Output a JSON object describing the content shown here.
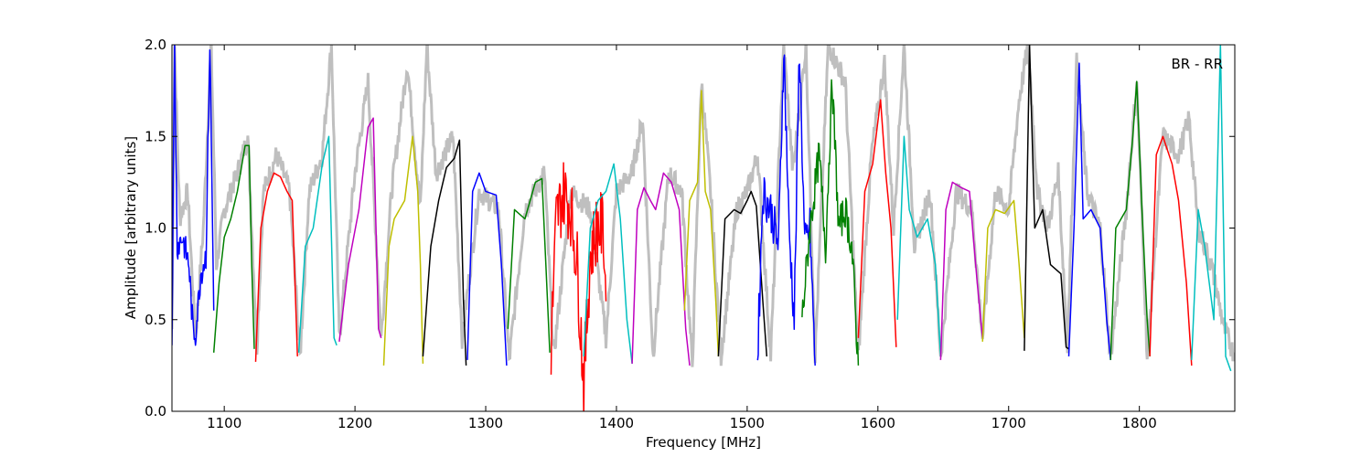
{
  "chart_data": {
    "type": "line",
    "title": "",
    "xlabel": "Frequency [MHz]",
    "ylabel": "Amplitude [arbitrary units]",
    "xlim": [
      1060,
      1873
    ],
    "ylim": [
      0.0,
      2.0
    ],
    "x_ticks": [
      "1100",
      "1200",
      "1300",
      "1400",
      "1500",
      "1600",
      "1700",
      "1800"
    ],
    "y_ticks": [
      "0.0",
      "0.5",
      "1.0",
      "1.5",
      "2.0"
    ],
    "annotation": "BR - RR",
    "grid": false,
    "background": {
      "color": "#bfbfbf",
      "points": [
        [
          1060,
          0.45
        ],
        [
          1062,
          2.0
        ],
        [
          1066,
          1.05
        ],
        [
          1072,
          1.2
        ],
        [
          1078,
          0.4
        ],
        [
          1084,
          1.0
        ],
        [
          1090,
          2.0
        ],
        [
          1094,
          0.8
        ],
        [
          1100,
          1.1
        ],
        [
          1110,
          1.3
        ],
        [
          1118,
          1.5
        ],
        [
          1125,
          0.35
        ],
        [
          1130,
          1.2
        ],
        [
          1140,
          1.4
        ],
        [
          1150,
          1.2
        ],
        [
          1158,
          0.3
        ],
        [
          1165,
          1.2
        ],
        [
          1175,
          1.4
        ],
        [
          1182,
          2.0
        ],
        [
          1188,
          0.4
        ],
        [
          1200,
          1.3
        ],
        [
          1210,
          1.8
        ],
        [
          1220,
          0.4
        ],
        [
          1228,
          1.2
        ],
        [
          1240,
          1.9
        ],
        [
          1250,
          1.1
        ],
        [
          1255,
          2.0
        ],
        [
          1262,
          1.3
        ],
        [
          1275,
          1.5
        ],
        [
          1282,
          0.4
        ],
        [
          1295,
          1.2
        ],
        [
          1310,
          1.1
        ],
        [
          1318,
          0.28
        ],
        [
          1330,
          1.1
        ],
        [
          1345,
          1.3
        ],
        [
          1352,
          0.3
        ],
        [
          1365,
          1.2
        ],
        [
          1380,
          1.1
        ],
        [
          1392,
          0.4
        ],
        [
          1400,
          1.2
        ],
        [
          1412,
          1.3
        ],
        [
          1420,
          1.6
        ],
        [
          1428,
          0.3
        ],
        [
          1440,
          1.3
        ],
        [
          1450,
          1.2
        ],
        [
          1458,
          0.25
        ],
        [
          1465,
          1.8
        ],
        [
          1472,
          1.2
        ],
        [
          1480,
          0.3
        ],
        [
          1492,
          1.1
        ],
        [
          1500,
          1.2
        ],
        [
          1508,
          1.4
        ],
        [
          1518,
          0.3
        ],
        [
          1528,
          2.0
        ],
        [
          1535,
          1.3
        ],
        [
          1545,
          2.0
        ],
        [
          1552,
          0.3
        ],
        [
          1562,
          2.0
        ],
        [
          1575,
          1.8
        ],
        [
          1585,
          0.3
        ],
        [
          1595,
          1.4
        ],
        [
          1605,
          1.9
        ],
        [
          1612,
          1.0
        ],
        [
          1620,
          2.0
        ],
        [
          1628,
          0.9
        ],
        [
          1640,
          1.2
        ],
        [
          1648,
          0.3
        ],
        [
          1660,
          1.2
        ],
        [
          1672,
          1.1
        ],
        [
          1680,
          0.4
        ],
        [
          1690,
          1.2
        ],
        [
          1700,
          1.1
        ],
        [
          1708,
          1.7
        ],
        [
          1715,
          2.0
        ],
        [
          1722,
          1.2
        ],
        [
          1730,
          1.0
        ],
        [
          1738,
          1.3
        ],
        [
          1745,
          0.35
        ],
        [
          1752,
          1.9
        ],
        [
          1760,
          1.2
        ],
        [
          1770,
          1.0
        ],
        [
          1778,
          0.3
        ],
        [
          1790,
          1.1
        ],
        [
          1798,
          1.8
        ],
        [
          1806,
          0.3
        ],
        [
          1818,
          1.5
        ],
        [
          1830,
          1.4
        ],
        [
          1838,
          1.6
        ],
        [
          1845,
          1.0
        ],
        [
          1855,
          0.8
        ],
        [
          1865,
          0.45
        ],
        [
          1873,
          0.3
        ]
      ]
    },
    "series": [
      {
        "color": "#0000ff",
        "jitter": 0.08,
        "points": [
          [
            1060,
            0.42
          ],
          [
            1062,
            2.0
          ],
          [
            1064,
            0.9
          ],
          [
            1068,
            0.95
          ],
          [
            1073,
            0.8
          ],
          [
            1076,
            0.45
          ],
          [
            1078,
            0.42
          ],
          [
            1082,
            0.75
          ],
          [
            1086,
            0.85
          ],
          [
            1089,
            2.0
          ],
          [
            1092,
            0.55
          ]
        ]
      },
      {
        "color": "#008000",
        "points": [
          [
            1092,
            0.32
          ],
          [
            1096,
            0.7
          ],
          [
            1100,
            0.95
          ],
          [
            1105,
            1.05
          ],
          [
            1110,
            1.2
          ],
          [
            1116,
            1.45
          ],
          [
            1119,
            1.45
          ],
          [
            1121,
            0.8
          ],
          [
            1123,
            0.34
          ]
        ]
      },
      {
        "color": "#ff0000",
        "points": [
          [
            1124,
            0.27
          ],
          [
            1128,
            1.0
          ],
          [
            1133,
            1.2
          ],
          [
            1138,
            1.3
          ],
          [
            1143,
            1.28
          ],
          [
            1148,
            1.2
          ],
          [
            1152,
            1.15
          ],
          [
            1156,
            0.3
          ]
        ]
      },
      {
        "color": "#00bfbf",
        "points": [
          [
            1157,
            0.32
          ],
          [
            1162,
            0.9
          ],
          [
            1168,
            1.0
          ],
          [
            1175,
            1.35
          ],
          [
            1180,
            1.5
          ],
          [
            1184,
            0.4
          ],
          [
            1186,
            0.36
          ]
        ]
      },
      {
        "color": "#bf00bf",
        "points": [
          [
            1188,
            0.38
          ],
          [
            1195,
            0.8
          ],
          [
            1203,
            1.1
          ],
          [
            1210,
            1.55
          ],
          [
            1214,
            1.6
          ],
          [
            1218,
            0.45
          ],
          [
            1220,
            0.4
          ]
        ]
      },
      {
        "color": "#bfbf00",
        "points": [
          [
            1222,
            0.25
          ],
          [
            1226,
            0.9
          ],
          [
            1230,
            1.05
          ],
          [
            1238,
            1.15
          ],
          [
            1244,
            1.5
          ],
          [
            1248,
            1.2
          ],
          [
            1250,
            0.8
          ],
          [
            1252,
            0.26
          ]
        ]
      },
      {
        "color": "#000000",
        "points": [
          [
            1252,
            0.3
          ],
          [
            1258,
            0.9
          ],
          [
            1264,
            1.15
          ],
          [
            1270,
            1.33
          ],
          [
            1276,
            1.38
          ],
          [
            1280,
            1.48
          ],
          [
            1283,
            0.6
          ],
          [
            1285,
            0.25
          ]
        ]
      },
      {
        "color": "#0000ff",
        "points": [
          [
            1286,
            0.28
          ],
          [
            1290,
            1.2
          ],
          [
            1295,
            1.3
          ],
          [
            1300,
            1.2
          ],
          [
            1308,
            1.18
          ],
          [
            1312,
            0.8
          ],
          [
            1316,
            0.25
          ]
        ]
      },
      {
        "color": "#008000",
        "points": [
          [
            1317,
            0.45
          ],
          [
            1322,
            1.1
          ],
          [
            1330,
            1.05
          ],
          [
            1338,
            1.25
          ],
          [
            1343,
            1.27
          ],
          [
            1346,
            0.8
          ],
          [
            1349,
            0.32
          ]
        ]
      },
      {
        "color": "#ff0000",
        "jitter": 0.2,
        "points": [
          [
            1350,
            0.35
          ],
          [
            1354,
            1.05
          ],
          [
            1360,
            1.2
          ],
          [
            1365,
            1.1
          ],
          [
            1370,
            0.8
          ],
          [
            1375,
            0.15
          ],
          [
            1380,
            0.85
          ],
          [
            1385,
            1.0
          ],
          [
            1390,
            1.0
          ],
          [
            1392,
            0.6
          ]
        ]
      },
      {
        "color": "#00bfbf",
        "points": [
          [
            1375,
            0.3
          ],
          [
            1380,
            1.0
          ],
          [
            1386,
            1.15
          ],
          [
            1392,
            1.2
          ],
          [
            1398,
            1.35
          ],
          [
            1403,
            1.05
          ],
          [
            1408,
            0.5
          ],
          [
            1412,
            0.26
          ]
        ]
      },
      {
        "color": "#bf00bf",
        "points": [
          [
            1412,
            0.26
          ],
          [
            1416,
            1.1
          ],
          [
            1421,
            1.22
          ],
          [
            1426,
            1.15
          ],
          [
            1430,
            1.1
          ],
          [
            1436,
            1.3
          ],
          [
            1442,
            1.25
          ],
          [
            1448,
            1.1
          ],
          [
            1453,
            0.45
          ],
          [
            1456,
            0.25
          ]
        ]
      },
      {
        "color": "#bfbf00",
        "points": [
          [
            1452,
            0.55
          ],
          [
            1456,
            1.15
          ],
          [
            1462,
            1.25
          ],
          [
            1465,
            1.75
          ],
          [
            1468,
            1.2
          ],
          [
            1472,
            1.1
          ],
          [
            1476,
            0.6
          ],
          [
            1478,
            0.3
          ]
        ]
      },
      {
        "color": "#000000",
        "points": [
          [
            1478,
            0.3
          ],
          [
            1483,
            1.05
          ],
          [
            1490,
            1.1
          ],
          [
            1495,
            1.08
          ],
          [
            1500,
            1.15
          ],
          [
            1503,
            1.2
          ],
          [
            1507,
            1.12
          ],
          [
            1512,
            0.6
          ],
          [
            1515,
            0.3
          ]
        ]
      },
      {
        "color": "#0000ff",
        "jitter": 0.12,
        "points": [
          [
            1508,
            0.3
          ],
          [
            1512,
            1.2
          ],
          [
            1518,
            1.1
          ],
          [
            1524,
            0.9
          ],
          [
            1528,
            2.0
          ],
          [
            1532,
            1.0
          ],
          [
            1536,
            0.5
          ],
          [
            1540,
            2.0
          ],
          [
            1544,
            0.9
          ],
          [
            1548,
            1.0
          ],
          [
            1552,
            0.25
          ]
        ]
      },
      {
        "color": "#008000",
        "jitter": 0.1,
        "points": [
          [
            1542,
            0.5
          ],
          [
            1548,
            1.0
          ],
          [
            1555,
            1.4
          ],
          [
            1560,
            0.9
          ],
          [
            1565,
            1.8
          ],
          [
            1570,
            1.0
          ],
          [
            1575,
            1.1
          ],
          [
            1580,
            0.9
          ],
          [
            1585,
            0.25
          ]
        ]
      },
      {
        "color": "#ff0000",
        "points": [
          [
            1585,
            0.4
          ],
          [
            1590,
            1.2
          ],
          [
            1596,
            1.35
          ],
          [
            1602,
            1.7
          ],
          [
            1606,
            1.3
          ],
          [
            1610,
            1.0
          ],
          [
            1614,
            0.35
          ]
        ]
      },
      {
        "color": "#00bfbf",
        "points": [
          [
            1615,
            0.5
          ],
          [
            1620,
            1.5
          ],
          [
            1624,
            1.1
          ],
          [
            1630,
            0.95
          ],
          [
            1638,
            1.05
          ],
          [
            1644,
            0.8
          ],
          [
            1648,
            0.3
          ]
        ]
      },
      {
        "color": "#bf00bf",
        "points": [
          [
            1648,
            0.28
          ],
          [
            1652,
            1.1
          ],
          [
            1657,
            1.25
          ],
          [
            1664,
            1.22
          ],
          [
            1670,
            1.2
          ],
          [
            1676,
            0.7
          ],
          [
            1680,
            0.4
          ]
        ]
      },
      {
        "color": "#bfbf00",
        "points": [
          [
            1680,
            0.38
          ],
          [
            1684,
            1.0
          ],
          [
            1690,
            1.1
          ],
          [
            1697,
            1.08
          ],
          [
            1704,
            1.15
          ],
          [
            1708,
            0.8
          ],
          [
            1712,
            0.4
          ]
        ]
      },
      {
        "color": "#000000",
        "points": [
          [
            1712,
            0.33
          ],
          [
            1716,
            2.0
          ],
          [
            1720,
            1.0
          ],
          [
            1726,
            1.1
          ],
          [
            1732,
            0.8
          ],
          [
            1740,
            0.75
          ],
          [
            1744,
            0.35
          ],
          [
            1746,
            0.34
          ]
        ]
      },
      {
        "color": "#0000ff",
        "points": [
          [
            1746,
            0.3
          ],
          [
            1750,
            1.0
          ],
          [
            1754,
            1.9
          ],
          [
            1757,
            1.05
          ],
          [
            1763,
            1.1
          ],
          [
            1770,
            1.0
          ],
          [
            1775,
            0.5
          ],
          [
            1778,
            0.28
          ]
        ]
      },
      {
        "color": "#008000",
        "points": [
          [
            1778,
            0.28
          ],
          [
            1782,
            1.0
          ],
          [
            1790,
            1.1
          ],
          [
            1795,
            1.5
          ],
          [
            1798,
            1.8
          ],
          [
            1802,
            1.1
          ],
          [
            1806,
            0.5
          ],
          [
            1808,
            0.3
          ]
        ]
      },
      {
        "color": "#ff0000",
        "points": [
          [
            1808,
            0.3
          ],
          [
            1813,
            1.4
          ],
          [
            1818,
            1.5
          ],
          [
            1825,
            1.35
          ],
          [
            1830,
            1.15
          ],
          [
            1836,
            0.7
          ],
          [
            1840,
            0.25
          ]
        ]
      },
      {
        "color": "#00bfbf",
        "points": [
          [
            1840,
            0.28
          ],
          [
            1845,
            1.1
          ],
          [
            1850,
            0.9
          ],
          [
            1857,
            0.5
          ],
          [
            1862,
            2.0
          ],
          [
            1866,
            0.3
          ],
          [
            1870,
            0.22
          ]
        ]
      }
    ]
  }
}
